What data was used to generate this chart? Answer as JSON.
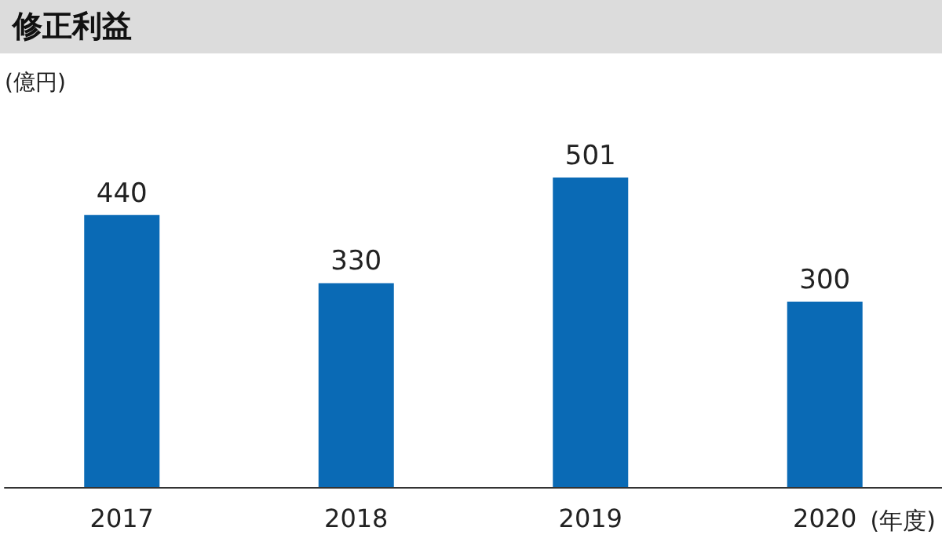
{
  "chart_data": {
    "type": "bar",
    "title": "修正利益",
    "ylabel": "(億円)",
    "xlabel": "(年度)",
    "categories": [
      "2017",
      "2018",
      "2019",
      "2020"
    ],
    "values": [
      440,
      330,
      501,
      300
    ],
    "color": "#0a6ab5",
    "data_labels": true
  }
}
